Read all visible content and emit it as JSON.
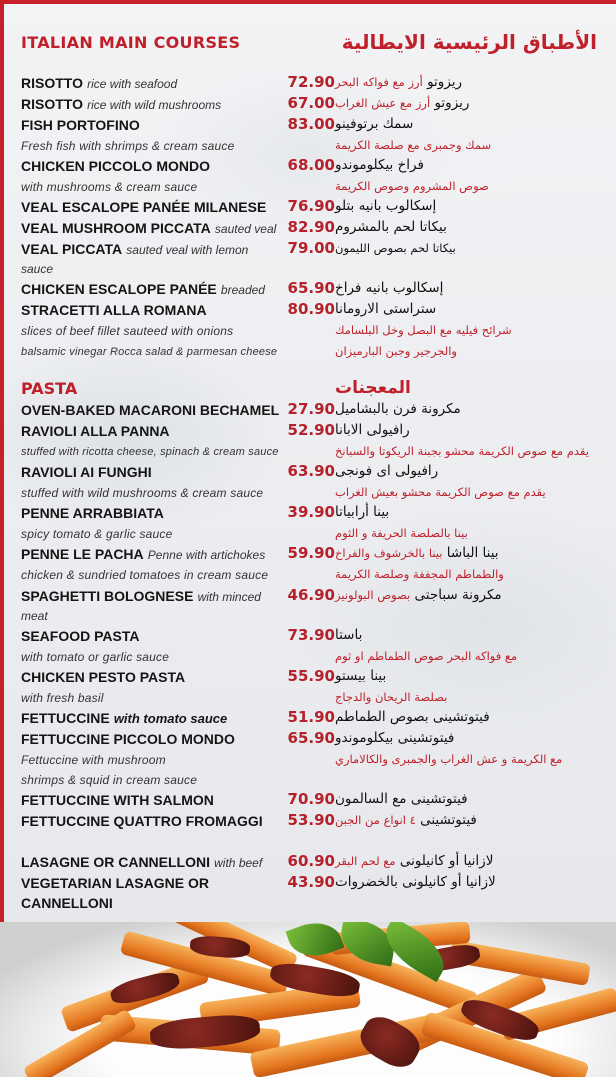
{
  "sections": {
    "main_en": "ITALIAN MAIN COURSES",
    "main_ar": "الأطباق الرئيسية الايطالية",
    "pasta_en": "PASTA",
    "pasta_ar": "المعجنات"
  },
  "rows": [
    {
      "name": "RISOTTO",
      "desc": "rice with seafood",
      "price": "72.90",
      "ar": "ريزوتو",
      "ar_desc": "أرز مع فواكه البحر"
    },
    {
      "name": "RISOTTO",
      "desc": "rice with wild mushrooms",
      "price": "67.00",
      "ar": "ريزوتو",
      "ar_desc": "أرز مع عيش الغراب"
    },
    {
      "name": "FISH PORTOFINO",
      "price": "83.00",
      "ar": "سمك برتوفينو"
    },
    {
      "line": "Fresh fish with shrimps & cream sauce",
      "ar_desc": "سمك وجمبرى مع صلصة الكريمة"
    },
    {
      "name": "CHICKEN PICCOLO MONDO",
      "price": "68.00",
      "ar": "فراخ بيكلوموندو"
    },
    {
      "line": "with mushrooms & cream sauce",
      "ar_desc": "صوص المشروم وصوص الكريمة"
    },
    {
      "name": "VEAL ESCALOPE PANÉE MILANESE",
      "price": "76.90",
      "ar": "إسكالوب بانيه بتلو"
    },
    {
      "name": "VEAL MUSHROOM PICCATA",
      "desc": "sauted veal",
      "price": "82.90",
      "ar": "بيكاتا لحم بالمشروم"
    },
    {
      "name": "VEAL PICCATA",
      "desc": "sauted veal with lemon sauce",
      "price": "79.00",
      "ar": "بيكاتا لحم بصوص الليمون",
      "small": true
    },
    {
      "name": "CHICKEN ESCALOPE PANÉE",
      "desc": "breaded",
      "price": "65.90",
      "ar": "إسكالوب بانيه فراخ"
    },
    {
      "name": "STRACETTI ALLA ROMANA",
      "price": "80.90",
      "ar": "ستراستى الارومانا"
    },
    {
      "line": "slices of beef fillet sauteed with onions",
      "ar_desc": "شرائح فيليه مع البصل وخل البلسامك",
      "small": true
    },
    {
      "line": "balsamic vinegar Rocca salad & parmesan cheese",
      "ar_desc": "والجرجير وجبن البارميزان",
      "small": true
    },
    {
      "section": "pasta"
    },
    {
      "name": "OVEN-BAKED MACARONI BECHAMEL",
      "price": "27.90",
      "ar": "مكرونة فرن بالبشاميل"
    },
    {
      "name": "RAVIOLI ALLA PANNA",
      "price": "52.90",
      "ar": "رافيولى الابانا"
    },
    {
      "line": "stuffed with ricotta cheese, spinach & cream sauce",
      "ar_desc": "يقدم مع صوص الكريمة محشو بجبنة الريكوتا والسبانخ",
      "small": true
    },
    {
      "name": "RAVIOLI AI FUNGHI",
      "price": "63.90",
      "ar": "رافيولى اى فونجى"
    },
    {
      "line": "stuffed with wild mushrooms & cream sauce",
      "ar_desc": "يقدم مع صوص الكريمة محشو بعيش الغراب"
    },
    {
      "name": "PENNE ARRABBIATA",
      "price": "39.90",
      "ar": "بينا أرابياتا"
    },
    {
      "line": "spicy tomato & garlic sauce",
      "ar_desc": "بينا بالصلصة الحريفة و الثوم"
    },
    {
      "name": "PENNE LE PACHA",
      "desc": "Penne with artichokes",
      "price": "59.90",
      "ar": "بينا الباشا",
      "ar_desc": "بينا بالخرشوف والفراخ"
    },
    {
      "line": "chicken & sundried tomatoes in cream sauce",
      "ar_desc": "والطماطم المجففة وصلصة الكريمة"
    },
    {
      "name": "SPAGHETTI BOLOGNESE",
      "desc": "with minced meat",
      "price": "46.90",
      "ar": "مكرونة سباجتى",
      "ar_desc": "بصوص البولونيز"
    },
    {
      "name": "SEAFOOD PASTA",
      "price": "73.90",
      "ar": "باستا"
    },
    {
      "line": "with tomato or garlic sauce",
      "ar_desc": "مع فواكه البحر  صوص الطماطم او ثوم"
    },
    {
      "name": "CHICKEN PESTO PASTA",
      "price": "55.90",
      "ar": "بينا بيستو"
    },
    {
      "line": "with fresh basil",
      "ar_desc": "بصلصة الريحان والدجاج"
    },
    {
      "name": "FETTUCCINE",
      "desc": "with tomato sauce",
      "bold_desc": true,
      "price": "51.90",
      "ar": "فيتوتشينى بصوص الطماطم"
    },
    {
      "name": "FETTUCCINE PICCOLO MONDO",
      "price": "65.90",
      "ar": "فيتوتشينى بيكلوموندو"
    },
    {
      "line": "Fettuccine with mushroom",
      "ar_desc": "مع الكريمة و عش الغراب والجمبرى والكالاماري"
    },
    {
      "line": " shrimps & squid in cream sauce"
    },
    {
      "name": "FETTUCCINE WITH SALMON",
      "price": "70.90",
      "ar": "فيتوتشينى مع السالمون"
    },
    {
      "name": "FETTUCCINE QUATTRO FROMAGGI",
      "price": "53.90",
      "ar": "فيتوتشينى",
      "ar_desc": "٤ انواع من الجبن"
    },
    {
      "name": "LASAGNE OR CANNELLONI",
      "desc": "with beef",
      "price": "60.90",
      "ar": "لازانيا  أو كانيلونى",
      "ar_desc": "مع لحم البقر",
      "gap": true
    },
    {
      "name": "VEGETARIAN LASAGNE OR CANNELLONI",
      "price": "43.90",
      "ar": "لازانيا أو كانيلونى بالخضروات"
    }
  ],
  "colors": {
    "accent": "#c0202a",
    "price": "#b5202a",
    "text": "#151515",
    "background": "#eceef1"
  }
}
